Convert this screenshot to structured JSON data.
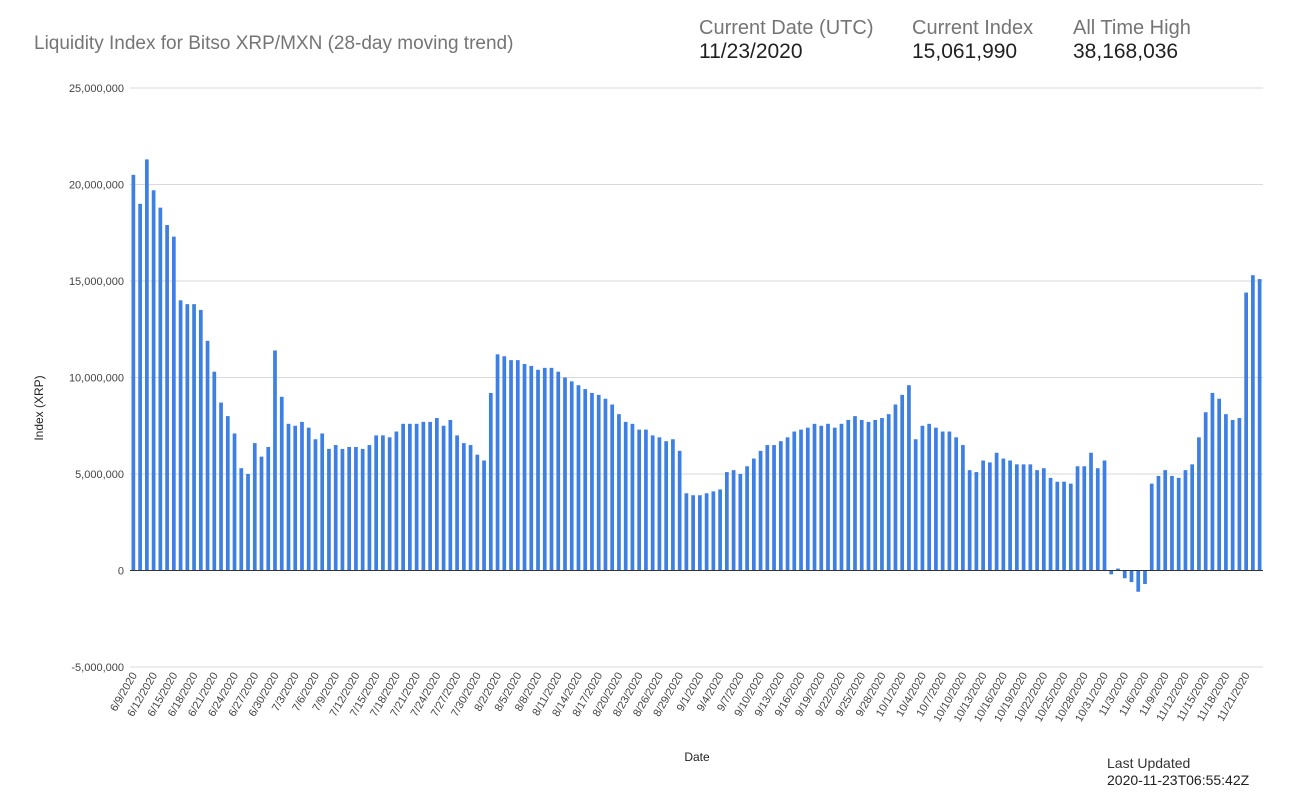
{
  "header": {
    "title": "Liquidity Index for Bitso XRP/MXN (28-day moving trend)",
    "stats": [
      {
        "label": "Current Date (UTC)",
        "value": "11/23/2020"
      },
      {
        "label": "Current Index",
        "value": "15,061,990"
      },
      {
        "label": "All Time High",
        "value": "38,168,036"
      }
    ]
  },
  "footer": {
    "last_updated_label": "Last Updated",
    "last_updated_value": "2020-11-23T06:55:42Z"
  },
  "colors": {
    "bar": "#3d7fe3",
    "grid": "#d9d9d9",
    "baseline": "#333333"
  },
  "chart_data": {
    "type": "bar",
    "xlabel": "Date",
    "ylabel": "Index (XRP)",
    "ylim": [
      -5000000,
      25000000
    ],
    "yticks": [
      -5000000,
      0,
      5000000,
      10000000,
      15000000,
      20000000,
      25000000
    ],
    "ytick_labels": [
      "-5,000,000",
      "0",
      "5,000,000",
      "10,000,000",
      "15,000,000",
      "20,000,000",
      "25,000,000"
    ],
    "grid": true,
    "legend": "none",
    "start_date": "6/9/2020",
    "x_tick_labels": [
      "6/9/2020",
      "6/12/2020",
      "6/15/2020",
      "6/18/2020",
      "6/21/2020",
      "6/24/2020",
      "6/27/2020",
      "6/30/2020",
      "7/3/2020",
      "7/6/2020",
      "7/9/2020",
      "7/12/2020",
      "7/15/2020",
      "7/18/2020",
      "7/21/2020",
      "7/24/2020",
      "7/27/2020",
      "7/30/2020",
      "8/2/2020",
      "8/5/2020",
      "8/8/2020",
      "8/11/2020",
      "8/14/2020",
      "8/17/2020",
      "8/20/2020",
      "8/23/2020",
      "8/26/2020",
      "8/29/2020",
      "9/1/2020",
      "9/4/2020",
      "9/7/2020",
      "9/10/2020",
      "9/13/2020",
      "9/16/2020",
      "9/19/2020",
      "9/22/2020",
      "9/25/2020",
      "9/28/2020",
      "10/1/2020",
      "10/4/2020",
      "10/7/2020",
      "10/10/2020",
      "10/13/2020",
      "10/16/2020",
      "10/19/2020",
      "10/22/2020",
      "10/25/2020",
      "10/28/2020",
      "10/31/2020",
      "11/3/2020",
      "11/6/2020",
      "11/9/2020",
      "11/12/2020",
      "11/15/2020",
      "11/18/2020",
      "11/21/2020"
    ],
    "values": [
      20500000,
      19000000,
      21300000,
      19700000,
      18800000,
      17900000,
      17300000,
      14000000,
      13800000,
      13800000,
      13500000,
      11900000,
      10300000,
      8700000,
      8000000,
      7100000,
      5300000,
      5000000,
      6600000,
      5900000,
      6400000,
      11400000,
      9000000,
      7600000,
      7500000,
      7700000,
      7400000,
      6800000,
      7100000,
      6300000,
      6500000,
      6300000,
      6400000,
      6400000,
      6300000,
      6500000,
      7000000,
      7000000,
      6900000,
      7200000,
      7600000,
      7600000,
      7600000,
      7700000,
      7700000,
      7900000,
      7500000,
      7800000,
      7000000,
      6600000,
      6500000,
      6000000,
      5700000,
      9200000,
      11200000,
      11100000,
      10900000,
      10900000,
      10700000,
      10600000,
      10400000,
      10500000,
      10500000,
      10300000,
      10000000,
      9800000,
      9600000,
      9400000,
      9200000,
      9100000,
      8900000,
      8600000,
      8100000,
      7700000,
      7600000,
      7300000,
      7300000,
      7000000,
      6900000,
      6700000,
      6800000,
      6200000,
      4000000,
      3900000,
      3900000,
      4000000,
      4100000,
      4200000,
      5100000,
      5200000,
      5000000,
      5400000,
      5800000,
      6200000,
      6500000,
      6500000,
      6700000,
      6900000,
      7200000,
      7300000,
      7400000,
      7600000,
      7500000,
      7600000,
      7400000,
      7600000,
      7800000,
      8000000,
      7800000,
      7700000,
      7800000,
      7900000,
      8100000,
      8600000,
      9100000,
      9600000,
      6800000,
      7500000,
      7600000,
      7400000,
      7200000,
      7200000,
      6900000,
      6500000,
      5200000,
      5100000,
      5700000,
      5600000,
      6100000,
      5800000,
      5700000,
      5500000,
      5500000,
      5500000,
      5200000,
      5300000,
      4800000,
      4600000,
      4600000,
      4500000,
      5400000,
      5400000,
      6100000,
      5300000,
      5700000,
      -200000,
      100000,
      -400000,
      -600000,
      -1100000,
      -700000,
      4500000,
      4900000,
      5200000,
      4900000,
      4800000,
      5200000,
      5500000,
      6900000,
      8200000,
      9200000,
      8900000,
      8100000,
      7800000,
      7900000,
      14400000,
      15300000,
      15100000
    ]
  }
}
